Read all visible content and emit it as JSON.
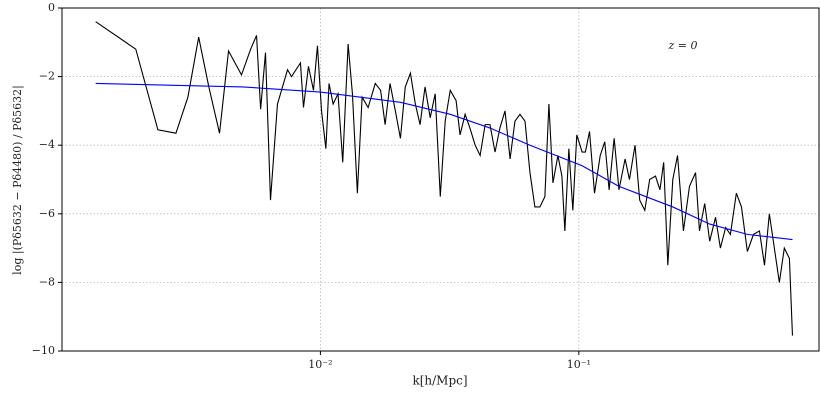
{
  "chart_data": {
    "type": "line",
    "xlabel": "k[h/Mpc]",
    "ylabel": "log |(Pδ5632 − Pδ4480) / Pδ5632|",
    "annotation": "z = 0",
    "xscale": "log",
    "grid": true,
    "xlim": [
      0.001,
      0.85
    ],
    "ylim": [
      -10,
      0
    ],
    "xticks": [
      {
        "value": 0.01,
        "label": "10⁻²"
      },
      {
        "value": 0.1,
        "label": "10⁻¹"
      }
    ],
    "yticks": [
      {
        "value": 0,
        "label": "0"
      },
      {
        "value": -2,
        "label": "−2"
      },
      {
        "value": -4,
        "label": "−4"
      },
      {
        "value": -6,
        "label": "−6"
      },
      {
        "value": -8,
        "label": "−8"
      },
      {
        "value": -10,
        "label": "−10"
      }
    ],
    "series": [
      {
        "color": "#000000",
        "x": [
          0.00135,
          0.00193,
          0.00235,
          0.00276,
          0.00307,
          0.00338,
          0.0037,
          0.00407,
          0.00441,
          0.00495,
          0.00537,
          0.00566,
          0.00587,
          0.00613,
          0.00641,
          0.00682,
          0.00746,
          0.00773,
          0.00837,
          0.0086,
          0.00899,
          0.0094,
          0.00974,
          0.0101,
          0.0105,
          0.0108,
          0.0112,
          0.0117,
          0.0122,
          0.0128,
          0.0133,
          0.0139,
          0.0145,
          0.0153,
          0.0163,
          0.0171,
          0.0178,
          0.0186,
          0.0195,
          0.0204,
          0.0213,
          0.0223,
          0.0233,
          0.0243,
          0.0254,
          0.0266,
          0.0278,
          0.0291,
          0.0304,
          0.0318,
          0.0335,
          0.0347,
          0.0363,
          0.0379,
          0.0397,
          0.0415,
          0.0434,
          0.0453,
          0.0474,
          0.0495,
          0.0518,
          0.0542,
          0.0566,
          0.0592,
          0.0619,
          0.0647,
          0.0676,
          0.0707,
          0.0739,
          0.0766,
          0.0794,
          0.083,
          0.086,
          0.0883,
          0.0915,
          0.0948,
          0.0982,
          0.103,
          0.106,
          0.11,
          0.115,
          0.121,
          0.126,
          0.131,
          0.137,
          0.143,
          0.151,
          0.157,
          0.165,
          0.172,
          0.18,
          0.188,
          0.198,
          0.206,
          0.213,
          0.221,
          0.231,
          0.241,
          0.254,
          0.268,
          0.283,
          0.293,
          0.307,
          0.321,
          0.338,
          0.353,
          0.37,
          0.386,
          0.407,
          0.426,
          0.449,
          0.474,
          0.5,
          0.523,
          0.546,
          0.571,
          0.597,
          0.624,
          0.653,
          0.671
        ],
        "values": [
          -0.4,
          -1.2,
          -3.55,
          -3.65,
          -2.6,
          -0.85,
          -2.3,
          -3.65,
          -1.25,
          -1.95,
          -1.2,
          -0.8,
          -2.95,
          -1.3,
          -5.6,
          -2.8,
          -1.8,
          -2.0,
          -1.6,
          -2.9,
          -1.7,
          -2.4,
          -1.1,
          -3.0,
          -4.1,
          -2.2,
          -2.8,
          -2.5,
          -4.5,
          -1.05,
          -2.5,
          -5.4,
          -2.6,
          -2.9,
          -2.2,
          -2.4,
          -3.4,
          -2.2,
          -3.0,
          -3.8,
          -2.3,
          -1.9,
          -2.8,
          -3.4,
          -2.3,
          -3.2,
          -2.5,
          -5.5,
          -3.3,
          -2.4,
          -2.7,
          -3.7,
          -3.1,
          -3.5,
          -4.0,
          -4.3,
          -3.4,
          -3.4,
          -4.2,
          -3.5,
          -3.0,
          -4.4,
          -3.3,
          -3.1,
          -3.3,
          -4.8,
          -5.8,
          -5.8,
          -5.5,
          -2.8,
          -5.1,
          -4.3,
          -4.9,
          -6.5,
          -4.1,
          -5.9,
          -3.7,
          -4.2,
          -4.2,
          -3.6,
          -5.4,
          -4.3,
          -3.9,
          -5.3,
          -3.8,
          -5.3,
          -4.4,
          -5.0,
          -4.0,
          -5.6,
          -5.9,
          -5.0,
          -4.9,
          -5.3,
          -4.5,
          -7.5,
          -5.0,
          -4.3,
          -6.5,
          -5.2,
          -4.8,
          -6.5,
          -5.7,
          -6.8,
          -6.1,
          -7.0,
          -6.4,
          -6.6,
          -5.4,
          -5.8,
          -7.1,
          -6.6,
          -6.5,
          -7.5,
          -6.0,
          -7.0,
          -8.0,
          -7.0,
          -7.3,
          -9.55
        ]
      },
      {
        "color": "#0000ff",
        "x": [
          0.00135,
          0.005,
          0.01,
          0.0204,
          0.0318,
          0.0453,
          0.0647,
          0.103,
          0.143,
          0.231,
          0.321,
          0.449,
          0.671
        ],
        "values": [
          -2.2,
          -2.3,
          -2.45,
          -2.75,
          -3.1,
          -3.5,
          -4.0,
          -4.6,
          -5.2,
          -5.8,
          -6.3,
          -6.6,
          -6.75
        ]
      }
    ]
  }
}
